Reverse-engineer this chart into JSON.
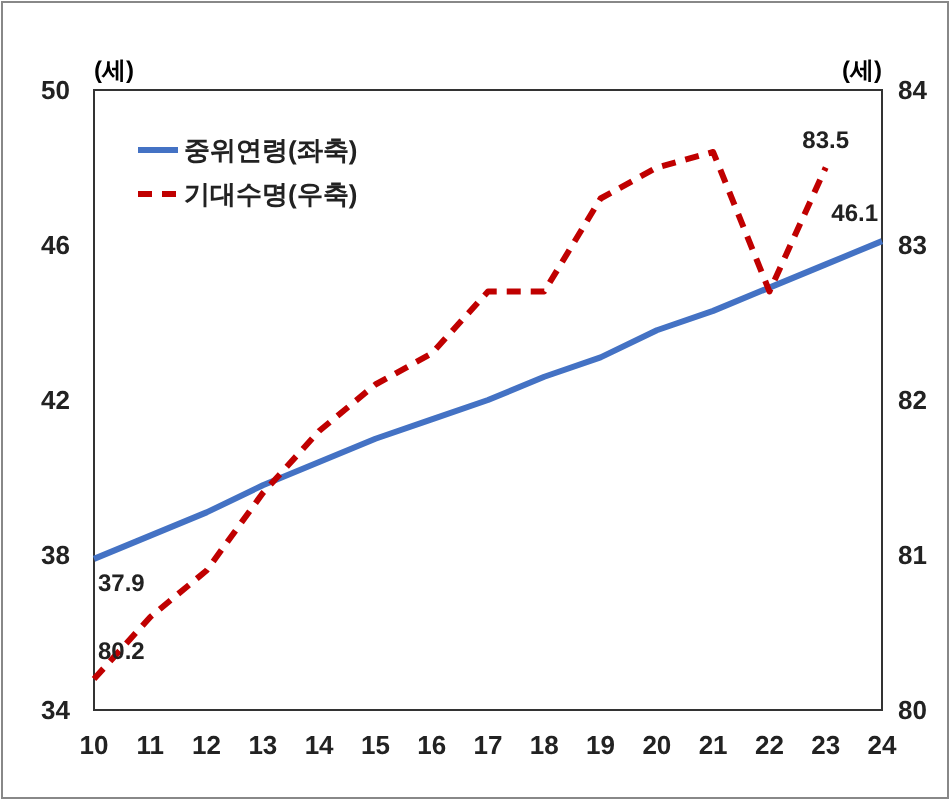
{
  "chart_data": {
    "type": "line",
    "categories": [
      "10",
      "11",
      "12",
      "13",
      "14",
      "15",
      "16",
      "17",
      "18",
      "19",
      "20",
      "21",
      "22",
      "23",
      "24"
    ],
    "ylabel": "(세)",
    "y2label": "(세)",
    "ylim": [
      34,
      50
    ],
    "yticks": [
      34,
      38,
      42,
      46,
      50
    ],
    "y2lim": [
      80,
      84
    ],
    "y2ticks": [
      80,
      81,
      82,
      83,
      84
    ],
    "legend": "top left",
    "grid": false,
    "series": [
      {
        "name": "중위연령(좌축)",
        "color": "#4472c4",
        "line_style": "solid",
        "values": [
          37.9,
          38.5,
          39.1,
          39.8,
          40.4,
          41.0,
          41.5,
          42.0,
          42.6,
          43.1,
          43.8,
          44.3,
          44.9,
          45.5,
          46.1
        ],
        "value_labels": [
          "37.9",
          null,
          null,
          null,
          null,
          null,
          null,
          null,
          null,
          null,
          null,
          null,
          null,
          null,
          "46.1"
        ]
      },
      {
        "name": "기대수명(우축)",
        "color": "#c00000",
        "line_style": "dashed",
        "axis": "y2",
        "values": [
          80.2,
          80.6,
          80.9,
          81.4,
          81.8,
          82.1,
          82.3,
          82.7,
          82.7,
          83.3,
          83.5,
          83.6,
          82.7,
          83.5,
          null
        ],
        "value_labels": [
          "80.2",
          null,
          null,
          null,
          null,
          null,
          null,
          null,
          null,
          null,
          null,
          null,
          null,
          "83.5",
          null
        ]
      }
    ]
  }
}
